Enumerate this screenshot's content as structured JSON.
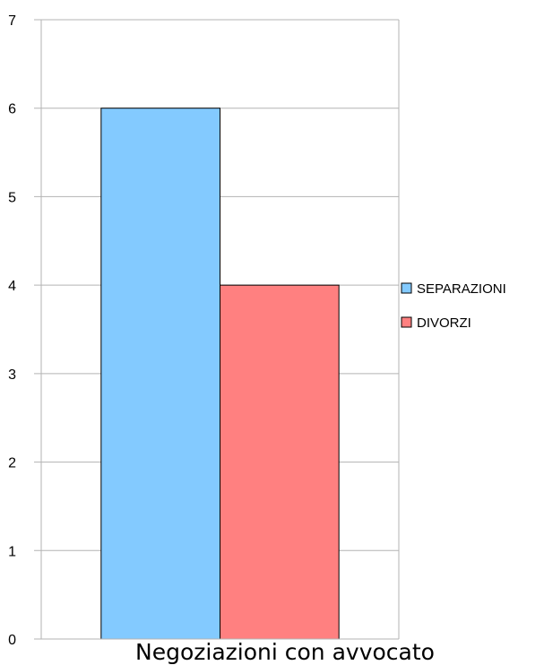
{
  "chart_data": {
    "type": "bar",
    "categories": [
      "Negoziazioni con avvocato"
    ],
    "series": [
      {
        "name": "SEPARAZIONI",
        "values": [
          6
        ],
        "color": "#83caff"
      },
      {
        "name": "DIVORZI",
        "values": [
          4
        ],
        "color": "#ff8080"
      }
    ],
    "ylim": [
      0,
      7
    ],
    "yticks": [
      "0",
      "1",
      "2",
      "3",
      "4",
      "5",
      "6",
      "7"
    ],
    "grid": true,
    "legend": "right"
  }
}
